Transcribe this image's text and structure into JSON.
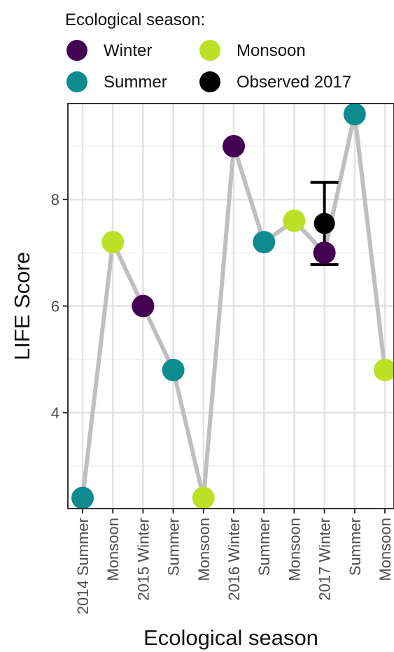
{
  "chart_data": {
    "type": "line",
    "title": "",
    "xlabel": "Ecological season",
    "ylabel": "LIFE Score",
    "ylim": [
      2.2,
      9.8
    ],
    "yticks": [
      4,
      6,
      8
    ],
    "grid": true,
    "legend": {
      "title": "Ecological season:",
      "placement": "top",
      "entries": [
        {
          "label": "Winter",
          "color": "#440154"
        },
        {
          "label": "Monsoon",
          "color": "#bddf26"
        },
        {
          "label": "Summer",
          "color": "#0d8b8f"
        },
        {
          "label": "Observed 2017",
          "color": "#000000"
        }
      ]
    },
    "categories": [
      "2014 Summer",
      "Monsoon",
      "2015 Winter",
      "Summer",
      "Monsoon",
      "2016 Winter",
      "Summer",
      "Monsoon",
      "2017 Winter",
      "Summer",
      "Monsoon"
    ],
    "series": [
      {
        "values": [
          2.4,
          7.2,
          6.0,
          4.8,
          2.4,
          9.0,
          7.2,
          7.6,
          7.0,
          9.6,
          4.8
        ],
        "seasons": [
          "Summer",
          "Monsoon",
          "Winter",
          "Summer",
          "Monsoon",
          "Winter",
          "Summer",
          "Monsoon",
          "Winter",
          "Summer",
          "Monsoon"
        ],
        "line_color": "#bfbfbf"
      }
    ],
    "observed": {
      "label": "Observed 2017",
      "category_index": 8,
      "value": 7.55,
      "error_low": 6.78,
      "error_high": 8.32,
      "color": "#000000"
    },
    "season_colors": {
      "Winter": "#440154",
      "Summer": "#0d8b8f",
      "Monsoon": "#bddf26"
    }
  }
}
